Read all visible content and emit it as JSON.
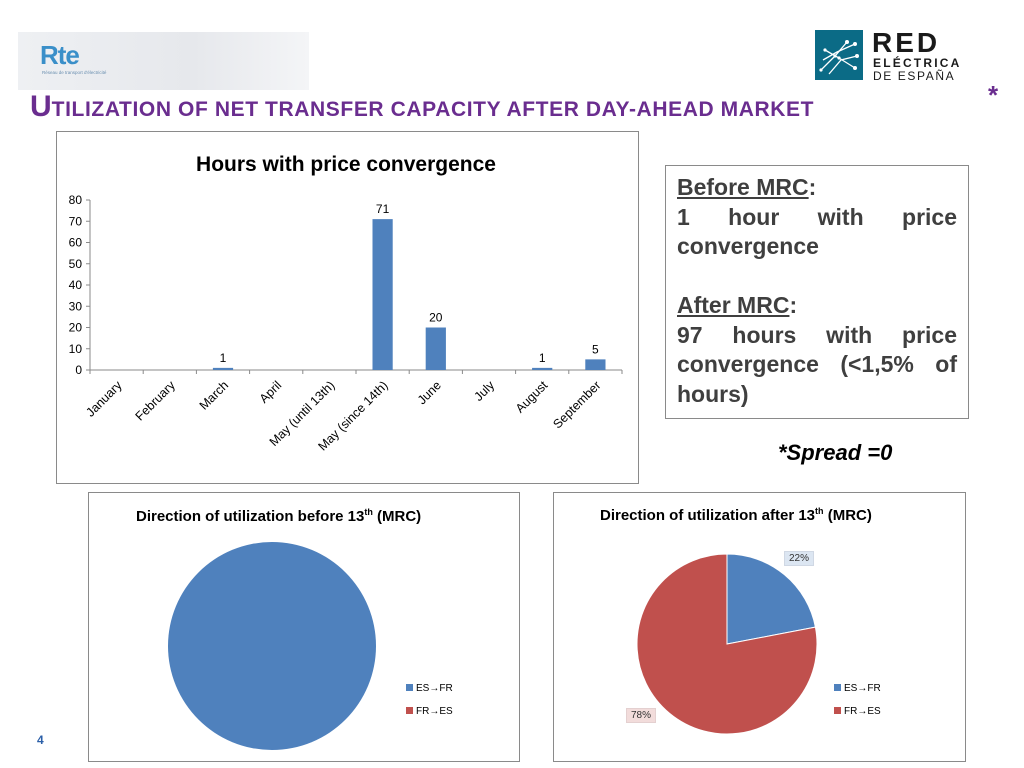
{
  "header": {
    "rte_logo_text": "Rte",
    "rte_logo_subtitle": "Réseau de transport d'électricité",
    "ree_logo_line1": "RED",
    "ree_logo_line2": "ELÉCTRICA",
    "ree_logo_line3": "DE ESPAÑA",
    "title_first": "U",
    "title_rest": "TILIZATION OF NET TRANSFER CAPACITY AFTER DAY-AHEAD MARKET",
    "title_star": "*"
  },
  "note": {
    "before_heading": "Before MRC",
    "before_text": "1 hour with price convergence",
    "after_heading": "After MRC",
    "after_text": "97 hours with price convergence (<1,5% of hours)"
  },
  "spread_note": "*Spread =0",
  "page_number": "4",
  "colors": {
    "blue": "#4f81bd",
    "red": "#c0504d",
    "title_purple": "#6a2d8f"
  },
  "chart_data": [
    {
      "type": "bar",
      "title": "Hours with price convergence",
      "categories": [
        "January",
        "February",
        "March",
        "April",
        "May (until 13th)",
        "May (since 14th)",
        "June",
        "July",
        "August",
        "September"
      ],
      "values": [
        0,
        0,
        1,
        0,
        0,
        71,
        20,
        0,
        1,
        5
      ],
      "data_labels": [
        "",
        "",
        "1",
        "",
        "",
        "71",
        "20",
        "",
        "1",
        "5"
      ],
      "ylim": [
        0,
        80
      ],
      "yticks": [
        "0",
        "10",
        "20",
        "30",
        "40",
        "50",
        "60",
        "70",
        "80"
      ],
      "grid": false,
      "color": "#4f81bd"
    },
    {
      "type": "pie",
      "title": "Direction of utilization before 13",
      "title_sup": "th",
      "title_suffix": " (MRC)",
      "labels": [
        "ES→FR",
        "FR→ES"
      ],
      "values": [
        100,
        0
      ],
      "colors": [
        "#4f81bd",
        "#c0504d"
      ],
      "legend": "right"
    },
    {
      "type": "pie",
      "title": "Direction of utilization after 13",
      "title_sup": "th",
      "title_suffix": " (MRC)",
      "labels": [
        "ES→FR",
        "FR→ES"
      ],
      "values": [
        22,
        78
      ],
      "data_labels": [
        "22%",
        "78%"
      ],
      "colors": [
        "#4f81bd",
        "#c0504d"
      ],
      "legend": "right"
    }
  ]
}
